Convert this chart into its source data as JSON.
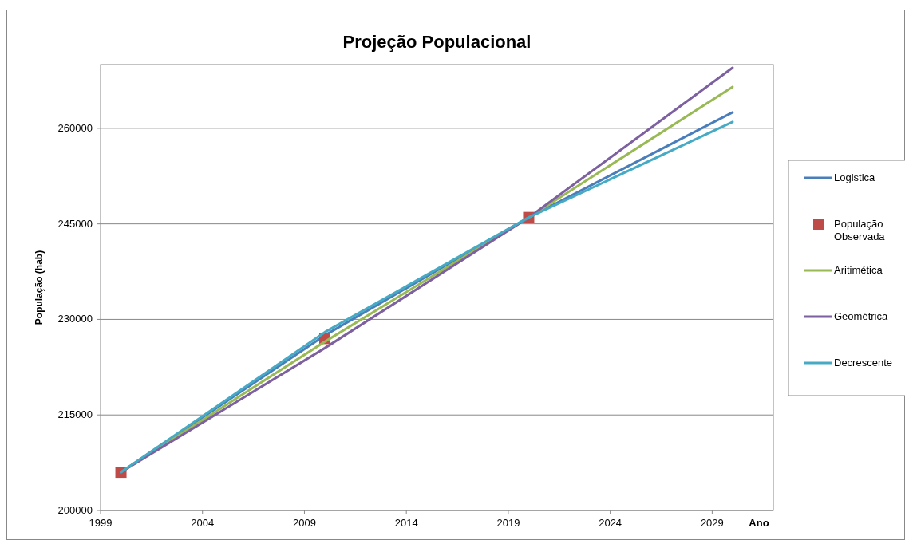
{
  "chart_data": {
    "type": "line",
    "title": "Projeção Populacional",
    "xlabel": "Ano",
    "ylabel": "População (hab)",
    "xlim": [
      1999,
      2032
    ],
    "xticks": [
      1999,
      2004,
      2009,
      2014,
      2019,
      2024,
      2029
    ],
    "ylim": [
      200000,
      270000
    ],
    "yticks": [
      200000,
      215000,
      230000,
      245000,
      260000
    ],
    "grid": "y",
    "legend": "right",
    "marker": "none",
    "line_style": "solid",
    "series": [
      {
        "name": "Logistica",
        "color": "#4a7ebb",
        "x": [
          2000,
          2010,
          2020,
          2030
        ],
        "values": [
          206000,
          227500,
          246000,
          262500
        ]
      },
      {
        "name": "População Observada",
        "type": "scatter",
        "marker": "square",
        "color": "#be4b48",
        "x": [
          2000,
          2010,
          2020
        ],
        "values": [
          206000,
          227000,
          246000
        ]
      },
      {
        "name": "Aritimética",
        "color": "#98b954",
        "x": [
          2000,
          2010,
          2020,
          2030
        ],
        "values": [
          206000,
          226500,
          246000,
          266500
        ]
      },
      {
        "name": "Geométrica",
        "color": "#7d60a0",
        "x": [
          2000,
          2010,
          2020,
          2030
        ],
        "values": [
          206000,
          225500,
          246000,
          269500
        ]
      },
      {
        "name": "Decrescente",
        "color": "#46aac5",
        "x": [
          2000,
          2010,
          2020,
          2030
        ],
        "values": [
          206000,
          228000,
          246000,
          261000
        ]
      }
    ]
  }
}
